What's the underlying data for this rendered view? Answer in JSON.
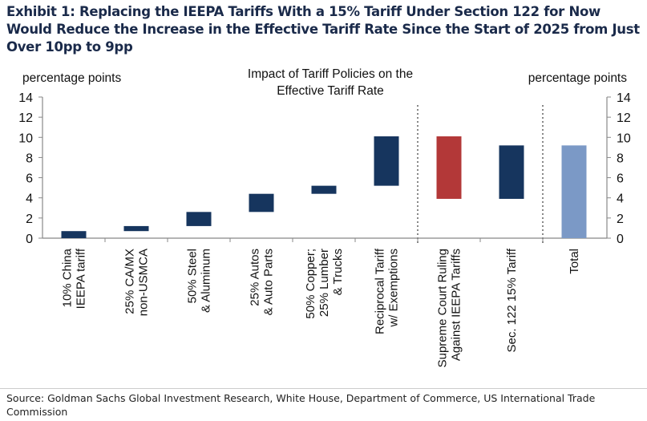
{
  "title": "Exhibit 1: Replacing the IEEPA Tariffs With a 15% Tariff Under Section 122 for Now Would Reduce the Increase in the Effective Tariff Rate Since the Start of 2025 from Just Over 10pp to 9pp",
  "source": "Source: Goldman Sachs Global Investment Research, White House, Department of Commerce, US International Trade Commission",
  "chart_data": {
    "type": "bar",
    "subtype": "waterfall",
    "title": "Impact of Tariff Policies on the Effective Tariff Rate",
    "ylabel_left": "percentage points",
    "ylabel_right": "percentage points",
    "ylim": [
      0,
      14
    ],
    "yticks": [
      0,
      2,
      4,
      6,
      8,
      10,
      12,
      14
    ],
    "grid": false,
    "categories": [
      [
        "10% China",
        "IEEPA tariff"
      ],
      [
        "25% CA/MX",
        "non-USMCA"
      ],
      [
        "50% Steel",
        "& Aluminum"
      ],
      [
        "25% Autos",
        "& Auto Parts"
      ],
      [
        "50% Copper;",
        "25% Lumber",
        "& Trucks"
      ],
      [
        "Reciprocal Tariff",
        "w/ Exemptions"
      ],
      [
        "Supreme Court Ruling",
        "Against IEEPA Tariffs"
      ],
      [
        "Sec. 122 15% Tariff"
      ],
      [
        "Total"
      ]
    ],
    "bars": [
      {
        "start": 0,
        "end": 0.7,
        "color": "#16355e"
      },
      {
        "start": 0.7,
        "end": 1.2,
        "color": "#16355e"
      },
      {
        "start": 1.2,
        "end": 2.6,
        "color": "#16355e"
      },
      {
        "start": 2.6,
        "end": 4.4,
        "color": "#16355e"
      },
      {
        "start": 4.4,
        "end": 5.2,
        "color": "#16355e"
      },
      {
        "start": 5.2,
        "end": 10.1,
        "color": "#16355e"
      },
      {
        "start": 10.1,
        "end": 3.9,
        "color": "#b33838"
      },
      {
        "start": 3.9,
        "end": 9.2,
        "color": "#16355e"
      },
      {
        "start": 0,
        "end": 9.2,
        "color": "#7b99c6"
      }
    ],
    "separators_after": [
      6,
      8
    ]
  }
}
